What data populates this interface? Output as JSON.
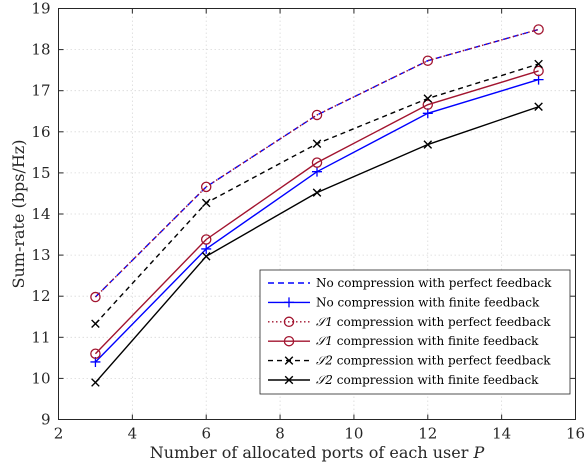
{
  "chart_data": {
    "type": "line",
    "xlabel": "Number of allocated ports of each user",
    "xlabel_symbol": "P",
    "ylabel": "Sum-rate (bps/Hz)",
    "xlim": [
      2,
      16
    ],
    "ylim": [
      9,
      19
    ],
    "xticks": [
      "2",
      "4",
      "6",
      "8",
      "10",
      "12",
      "14",
      "16"
    ],
    "yticks": [
      "9",
      "10",
      "11",
      "12",
      "13",
      "14",
      "15",
      "16",
      "17",
      "18",
      "19"
    ],
    "grid": true,
    "legend_position": "bottom-right",
    "x": [
      3,
      6,
      9,
      12,
      15
    ],
    "series": [
      {
        "name": "No compression with perfect feedback",
        "values": [
          11.98,
          14.66,
          16.41,
          17.73,
          18.49
        ],
        "color": "#0000ff",
        "dash": "6 4",
        "marker": "none"
      },
      {
        "name": "No compression with finite feedback",
        "values": [
          10.4,
          13.15,
          15.03,
          16.45,
          17.27
        ],
        "color": "#0000ff",
        "dash": "",
        "marker": "plus"
      },
      {
        "name": "S1 compression with perfect feedback",
        "values": [
          11.98,
          14.66,
          16.41,
          17.73,
          18.49
        ],
        "color": "#a2142f",
        "dash": "1.5 2.5",
        "marker": "circle"
      },
      {
        "name": "S1 compression with finite feedback",
        "values": [
          10.6,
          13.38,
          15.25,
          16.66,
          17.48
        ],
        "color": "#a2142f",
        "dash": "",
        "marker": "circle"
      },
      {
        "name": "S2 compression with perfect feedback",
        "values": [
          11.33,
          14.27,
          15.71,
          16.81,
          17.65
        ],
        "color": "#000000",
        "dash": "5 4",
        "marker": "x"
      },
      {
        "name": "S2 compression with finite feedback",
        "values": [
          9.9,
          12.97,
          14.52,
          15.69,
          16.61
        ],
        "color": "#000000",
        "dash": "",
        "marker": "x"
      }
    ],
    "legend": [
      {
        "prefix": "",
        "label": "No compression with perfect feedback"
      },
      {
        "prefix": "",
        "label": "No compression with finite feedback"
      },
      {
        "prefix": "𝒮1",
        "label": " compression with perfect feedback"
      },
      {
        "prefix": "𝒮1",
        "label": " compression with finite feedback"
      },
      {
        "prefix": "𝒮2",
        "label": " compression with perfect feedback"
      },
      {
        "prefix": "𝒮2",
        "label": " compression with finite feedback"
      }
    ]
  }
}
